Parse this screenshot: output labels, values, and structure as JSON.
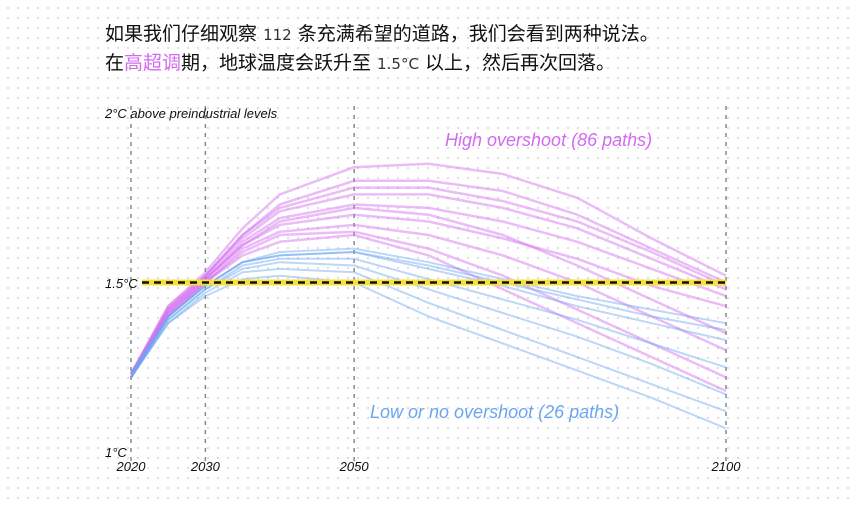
{
  "title": {
    "line1_a": "如果我们仔细观察",
    "line1_num": "112",
    "line1_b": "条充满希望的道路，我们会看到两种说法。",
    "line2_a": "在",
    "line2_highlight": "高超调",
    "line2_b": "期，地球温度会跃升至",
    "line2_num": "1.5°C",
    "line2_c": "以上，然后再次回落。"
  },
  "chart_data": {
    "type": "line",
    "ylabel": "2°C above preindustrial levels",
    "ylim": [
      1,
      2
    ],
    "xlim": [
      2020,
      2100
    ],
    "x_ticks": [
      "2020",
      "2030",
      "2050",
      "2100"
    ],
    "y_tick_labels": {
      "top": "2°C above preindustrial levels",
      "mid": "1.5°C",
      "bottom": "1°C"
    },
    "threshold": {
      "value": 1.5,
      "label": "1.5°C",
      "color": "#f5e13a"
    },
    "x": [
      2020,
      2025,
      2030,
      2035,
      2040,
      2050,
      2060,
      2070,
      2080,
      2090,
      2100
    ],
    "groups": [
      {
        "name": "High overshoot (86 paths)",
        "color": "#d36bf0",
        "series": [
          [
            1.23,
            1.43,
            1.53,
            1.66,
            1.76,
            1.84,
            1.85,
            1.82,
            1.75,
            1.63,
            1.52
          ],
          [
            1.23,
            1.43,
            1.52,
            1.64,
            1.73,
            1.8,
            1.8,
            1.77,
            1.7,
            1.6,
            1.5
          ],
          [
            1.23,
            1.42,
            1.52,
            1.63,
            1.71,
            1.76,
            1.76,
            1.72,
            1.66,
            1.57,
            1.48
          ],
          [
            1.22,
            1.42,
            1.51,
            1.62,
            1.69,
            1.73,
            1.72,
            1.68,
            1.62,
            1.54,
            1.46
          ],
          [
            1.22,
            1.41,
            1.51,
            1.61,
            1.67,
            1.7,
            1.68,
            1.63,
            1.57,
            1.49,
            1.43
          ],
          [
            1.22,
            1.41,
            1.5,
            1.6,
            1.65,
            1.67,
            1.64,
            1.58,
            1.5,
            1.4,
            1.3
          ],
          [
            1.22,
            1.4,
            1.5,
            1.59,
            1.64,
            1.65,
            1.6,
            1.52,
            1.42,
            1.32,
            1.22
          ],
          [
            1.22,
            1.41,
            1.51,
            1.61,
            1.68,
            1.72,
            1.7,
            1.64,
            1.55,
            1.45,
            1.35
          ],
          [
            1.23,
            1.42,
            1.52,
            1.64,
            1.72,
            1.78,
            1.78,
            1.74,
            1.68,
            1.59,
            1.49
          ],
          [
            1.22,
            1.4,
            1.5,
            1.58,
            1.62,
            1.64,
            1.58,
            1.48,
            1.38,
            1.28,
            1.18
          ]
        ]
      },
      {
        "name": "Low or no overshoot (26 paths)",
        "color": "#6aa6f0",
        "series": [
          [
            1.23,
            1.4,
            1.49,
            1.56,
            1.59,
            1.6,
            1.56,
            1.51,
            1.46,
            1.42,
            1.38
          ],
          [
            1.23,
            1.4,
            1.49,
            1.56,
            1.58,
            1.59,
            1.54,
            1.49,
            1.43,
            1.38,
            1.33
          ],
          [
            1.22,
            1.39,
            1.48,
            1.55,
            1.57,
            1.57,
            1.51,
            1.45,
            1.39,
            1.32,
            1.25
          ],
          [
            1.22,
            1.39,
            1.48,
            1.54,
            1.56,
            1.55,
            1.48,
            1.41,
            1.34,
            1.26,
            1.17
          ],
          [
            1.22,
            1.38,
            1.47,
            1.53,
            1.54,
            1.53,
            1.44,
            1.36,
            1.28,
            1.2,
            1.12
          ],
          [
            1.22,
            1.38,
            1.46,
            1.51,
            1.52,
            1.5,
            1.4,
            1.32,
            1.24,
            1.16,
            1.07
          ],
          [
            1.23,
            1.4,
            1.49,
            1.56,
            1.58,
            1.59,
            1.55,
            1.5,
            1.45,
            1.4,
            1.36
          ]
        ]
      }
    ]
  }
}
